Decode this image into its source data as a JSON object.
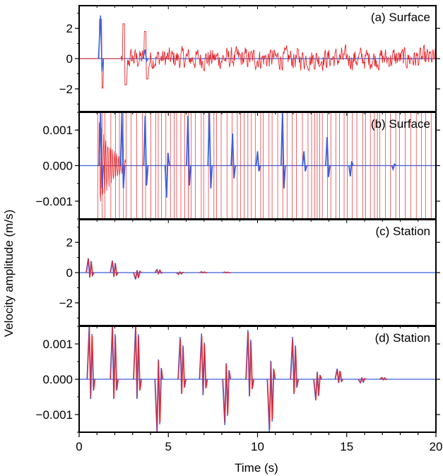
{
  "chart_data": {
    "type": "line",
    "xlabel": "Time (s)",
    "ylabel": "Velocity amplitude (m/s)",
    "xlim": [
      0,
      20
    ],
    "xticks": [
      {
        "value": 0,
        "label": "0"
      },
      {
        "value": 5,
        "label": "5"
      },
      {
        "value": 10,
        "label": "10"
      },
      {
        "value": 15,
        "label": "15"
      },
      {
        "value": 20,
        "label": "20"
      }
    ],
    "series_colors": {
      "red_trace": "#e8262b",
      "blue_trace": "#3a5fd9"
    },
    "panels": [
      {
        "id": "a",
        "label": "(a) Surface",
        "ylim": [
          -3.5,
          3.5
        ],
        "yticks": [
          {
            "value": 2,
            "label": "2"
          },
          {
            "value": 0,
            "label": "0"
          },
          {
            "value": -2,
            "label": "−2"
          }
        ],
        "style": "noise",
        "red_amplitude": 1.1,
        "pulses": [
          {
            "t": 1.2,
            "blue": 2.85,
            "red": 2.6
          },
          {
            "t": 2.5,
            "blue": 0.0,
            "red": 2.3
          },
          {
            "t": 3.7,
            "blue": 0.6,
            "red": 1.8
          }
        ]
      },
      {
        "id": "b",
        "label": "(b) Surface",
        "ylim": [
          -0.0015,
          0.0015
        ],
        "yticks": [
          {
            "value": 0.001,
            "label": "0.001"
          },
          {
            "value": 0,
            "label": "0.000"
          },
          {
            "value": -0.001,
            "label": "−0.001"
          }
        ],
        "style": "spikes",
        "blue_events": [
          {
            "t": 1.2,
            "a": 0.0016
          },
          {
            "t": 2.4,
            "a": 0.0016
          },
          {
            "t": 3.7,
            "a": 0.0014
          },
          {
            "t": 4.9,
            "a": -0.0009
          },
          {
            "t": 6.1,
            "a": 0.0014
          },
          {
            "t": 7.3,
            "a": 0.0016
          },
          {
            "t": 8.6,
            "a": 0.0009
          },
          {
            "t": 10.0,
            "a": 0.0004
          },
          {
            "t": 11.4,
            "a": 0.0016
          },
          {
            "t": 12.6,
            "a": 0.0004
          },
          {
            "t": 13.9,
            "a": 0.0008
          },
          {
            "t": 15.2,
            "a": -0.0003
          },
          {
            "t": 17.6,
            "a": -0.0001
          }
        ]
      },
      {
        "id": "c",
        "label": "(c) Station",
        "ylim": [
          -3.5,
          3.5
        ],
        "yticks": [
          {
            "value": 2,
            "label": "2"
          },
          {
            "value": 0,
            "label": "0"
          },
          {
            "value": -2,
            "label": "−2"
          }
        ],
        "style": "pulses",
        "pulses": [
          {
            "t": 0.55,
            "a": 0.95
          },
          {
            "t": 1.9,
            "a": 0.8
          },
          {
            "t": 3.2,
            "a": -0.45
          },
          {
            "t": 4.4,
            "a": 0.2
          },
          {
            "t": 5.6,
            "a": -0.12
          },
          {
            "t": 6.9,
            "a": 0.06
          },
          {
            "t": 8.2,
            "a": 0.04
          }
        ]
      },
      {
        "id": "d",
        "label": "(d) Station",
        "ylim": [
          -0.0015,
          0.0015
        ],
        "yticks": [
          {
            "value": 0.001,
            "label": "0.001"
          },
          {
            "value": 0,
            "label": "0.000"
          },
          {
            "value": -0.001,
            "label": "−0.001"
          }
        ],
        "style": "pulses",
        "pulses": [
          {
            "t": 0.6,
            "a": 0.0016
          },
          {
            "t": 1.9,
            "a": 0.0016
          },
          {
            "t": 3.2,
            "a": 0.0016
          },
          {
            "t": 4.4,
            "a": -0.0016
          },
          {
            "t": 5.7,
            "a": 0.0012
          },
          {
            "t": 6.9,
            "a": 0.0013
          },
          {
            "t": 8.2,
            "a": -0.0013
          },
          {
            "t": 9.5,
            "a": 0.0014
          },
          {
            "t": 10.7,
            "a": -0.0015
          },
          {
            "t": 12.0,
            "a": 0.0012
          },
          {
            "t": 13.3,
            "a": -0.0006
          },
          {
            "t": 14.5,
            "a": 0.0003
          },
          {
            "t": 15.8,
            "a": -0.0001
          },
          {
            "t": 17.0,
            "a": 5e-05
          }
        ]
      }
    ]
  }
}
